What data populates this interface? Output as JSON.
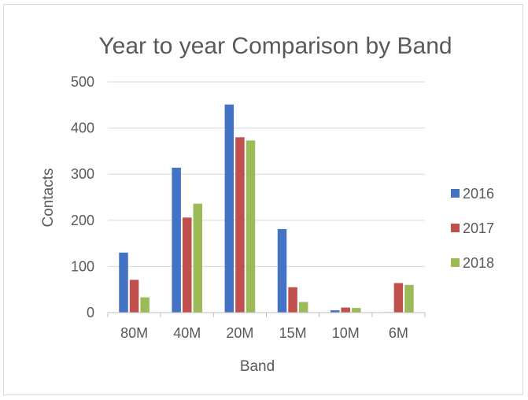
{
  "chart_data": {
    "type": "bar",
    "title": "Year to year Comparison by Band",
    "xlabel": "Band",
    "ylabel": "Contacts",
    "categories": [
      "80M",
      "40M",
      "20M",
      "15M",
      "10M",
      "6M"
    ],
    "ylim": [
      0,
      500
    ],
    "yticks": [
      0,
      100,
      200,
      300,
      400,
      500
    ],
    "grid": true,
    "legend": "right",
    "series": [
      {
        "name": "2016",
        "color": "#4472c4",
        "values": [
          130,
          314,
          451,
          181,
          5,
          1
        ]
      },
      {
        "name": "2017",
        "color": "#c0504d",
        "values": [
          71,
          206,
          380,
          55,
          11,
          64
        ]
      },
      {
        "name": "2018",
        "color": "#9bbb59",
        "values": [
          33,
          236,
          373,
          23,
          10,
          60
        ]
      }
    ]
  }
}
